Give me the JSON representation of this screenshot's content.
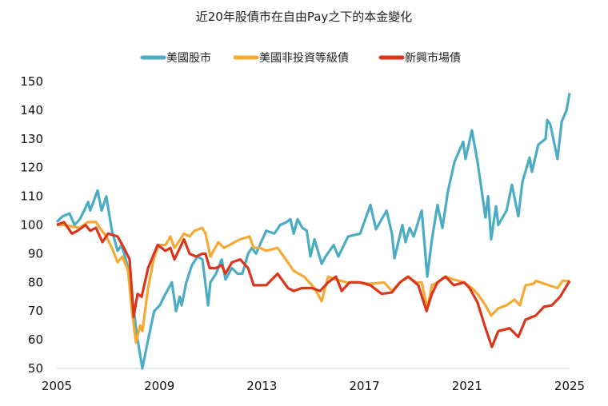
{
  "chart_data": {
    "type": "line",
    "title": "近20年股債市在自由Pay之下的本金變化",
    "xlabel": "",
    "ylabel": "",
    "xlim": [
      2005,
      2025
    ],
    "ylim": [
      50,
      150
    ],
    "x_ticks": [
      "2005",
      "2009",
      "2013",
      "2017",
      "2021",
      "2025"
    ],
    "y_ticks": [
      "50",
      "60",
      "70",
      "80",
      "90",
      "100",
      "110",
      "120",
      "130",
      "140",
      "150"
    ],
    "grid": false,
    "legend_position": "top",
    "series": [
      {
        "name": "美國股市",
        "color": "#4bacc6",
        "points": [
          [
            2005,
            101
          ],
          [
            2005.22,
            103
          ],
          [
            2005.5,
            104
          ],
          [
            2005.69,
            100
          ],
          [
            2005.9,
            102
          ],
          [
            2006.12,
            106
          ],
          [
            2006.22,
            108
          ],
          [
            2006.3,
            105
          ],
          [
            2006.59,
            112
          ],
          [
            2006.75,
            105
          ],
          [
            2006.93,
            110
          ],
          [
            2007.15,
            98
          ],
          [
            2007.37,
            91
          ],
          [
            2007.53,
            93
          ],
          [
            2007.78,
            85
          ],
          [
            2008.15,
            60
          ],
          [
            2008.34,
            50
          ],
          [
            2008.56,
            60
          ],
          [
            2008.8,
            70
          ],
          [
            2009.02,
            72
          ],
          [
            2009.24,
            76
          ],
          [
            2009.49,
            80
          ],
          [
            2009.65,
            70
          ],
          [
            2009.8,
            75
          ],
          [
            2009.87,
            72
          ],
          [
            2010.05,
            80
          ],
          [
            2010.27,
            86
          ],
          [
            2010.49,
            89
          ],
          [
            2010.68,
            88
          ],
          [
            2010.9,
            72
          ],
          [
            2010.99,
            80
          ],
          [
            2011.21,
            83
          ],
          [
            2011.43,
            88
          ],
          [
            2011.58,
            81
          ],
          [
            2011.83,
            85
          ],
          [
            2012.05,
            83
          ],
          [
            2012.24,
            83
          ],
          [
            2012.46,
            90
          ],
          [
            2012.61,
            92
          ],
          [
            2012.77,
            90
          ],
          [
            2013.02,
            95
          ],
          [
            2013.17,
            98
          ],
          [
            2013.49,
            97
          ],
          [
            2013.71,
            100
          ],
          [
            2013.96,
            101
          ],
          [
            2014.11,
            102
          ],
          [
            2014.24,
            97
          ],
          [
            2014.39,
            102
          ],
          [
            2014.58,
            99
          ],
          [
            2014.75,
            98
          ],
          [
            2014.89,
            89
          ],
          [
            2015.05,
            95
          ],
          [
            2015.33,
            86.5
          ],
          [
            2015.48,
            89
          ],
          [
            2015.8,
            93
          ],
          [
            2015.98,
            89
          ],
          [
            2016.36,
            96
          ],
          [
            2016.83,
            97
          ],
          [
            2017.23,
            107
          ],
          [
            2017.45,
            98.5
          ],
          [
            2017.86,
            105
          ],
          [
            2018.07,
            97
          ],
          [
            2018.17,
            88.4
          ],
          [
            2018.48,
            100
          ],
          [
            2018.6,
            94
          ],
          [
            2018.76,
            99
          ],
          [
            2018.92,
            96
          ],
          [
            2019.23,
            105
          ],
          [
            2019.45,
            82
          ],
          [
            2019.63,
            95
          ],
          [
            2019.85,
            107
          ],
          [
            2020.04,
            99
          ],
          [
            2020.26,
            112
          ],
          [
            2020.51,
            122
          ],
          [
            2020.85,
            129
          ],
          [
            2020.94,
            123
          ],
          [
            2021.19,
            133
          ],
          [
            2021.41,
            122
          ],
          [
            2021.57,
            112
          ],
          [
            2021.72,
            102.6
          ],
          [
            2021.82,
            110
          ],
          [
            2021.94,
            95
          ],
          [
            2022.13,
            106.5
          ],
          [
            2022.22,
            100
          ],
          [
            2022.54,
            105
          ],
          [
            2022.75,
            114
          ],
          [
            2023.0,
            103
          ],
          [
            2023.16,
            115
          ],
          [
            2023.44,
            123.5
          ],
          [
            2023.53,
            118.5
          ],
          [
            2023.78,
            128
          ],
          [
            2024.06,
            130
          ],
          [
            2024.13,
            136.6
          ],
          [
            2024.25,
            135
          ],
          [
            2024.53,
            123
          ],
          [
            2024.69,
            136
          ],
          [
            2024.88,
            140
          ],
          [
            2025,
            146
          ]
        ]
      },
      {
        "name": "美國非投資等級債",
        "color": "#f7a935",
        "points": [
          [
            2005,
            100
          ],
          [
            2005.28,
            100
          ],
          [
            2005.9,
            99
          ],
          [
            2006.2,
            101
          ],
          [
            2006.53,
            101
          ],
          [
            2006.68,
            99
          ],
          [
            2006.93,
            96
          ],
          [
            2007.15,
            92
          ],
          [
            2007.37,
            87
          ],
          [
            2007.56,
            89
          ],
          [
            2007.78,
            84
          ],
          [
            2007.93,
            70
          ],
          [
            2008.09,
            59
          ],
          [
            2008.25,
            65
          ],
          [
            2008.34,
            63
          ],
          [
            2008.56,
            78
          ],
          [
            2008.78,
            88
          ],
          [
            2008.96,
            93
          ],
          [
            2009.24,
            93
          ],
          [
            2009.43,
            96
          ],
          [
            2009.59,
            92
          ],
          [
            2009.96,
            97
          ],
          [
            2010.18,
            96
          ],
          [
            2010.37,
            98
          ],
          [
            2010.68,
            99
          ],
          [
            2010.8,
            97
          ],
          [
            2010.99,
            89
          ],
          [
            2011.11,
            91
          ],
          [
            2011.3,
            94
          ],
          [
            2011.52,
            92
          ],
          [
            2011.74,
            93
          ],
          [
            2011.93,
            94
          ],
          [
            2012.15,
            95
          ],
          [
            2012.52,
            96
          ],
          [
            2012.68,
            92
          ],
          [
            2012.93,
            92
          ],
          [
            2013.17,
            91
          ],
          [
            2013.61,
            92
          ],
          [
            2013.93,
            88
          ],
          [
            2014.24,
            84
          ],
          [
            2014.64,
            82
          ],
          [
            2015.05,
            78
          ],
          [
            2015.33,
            73.4
          ],
          [
            2015.58,
            82
          ],
          [
            2015.89,
            81
          ],
          [
            2016.3,
            80
          ],
          [
            2016.73,
            80
          ],
          [
            2017.23,
            79.5
          ],
          [
            2017.76,
            80
          ],
          [
            2018.07,
            77
          ],
          [
            2018.39,
            80
          ],
          [
            2018.7,
            82
          ],
          [
            2019.01,
            80
          ],
          [
            2019.23,
            80
          ],
          [
            2019.45,
            71
          ],
          [
            2019.63,
            79
          ],
          [
            2019.85,
            80
          ],
          [
            2020.16,
            82
          ],
          [
            2020.48,
            81
          ],
          [
            2020.88,
            80
          ],
          [
            2021.19,
            78
          ],
          [
            2021.41,
            76
          ],
          [
            2021.72,
            72
          ],
          [
            2021.94,
            68.4
          ],
          [
            2022.22,
            71
          ],
          [
            2022.54,
            72
          ],
          [
            2022.85,
            74
          ],
          [
            2023.06,
            72
          ],
          [
            2023.28,
            79
          ],
          [
            2023.59,
            79.5
          ],
          [
            2023.69,
            80.5
          ],
          [
            2024.53,
            78
          ],
          [
            2024.72,
            80.5
          ],
          [
            2025,
            80.5
          ]
        ]
      },
      {
        "name": "新興市場債",
        "color": "#d9361c",
        "points": [
          [
            2005,
            100
          ],
          [
            2005.28,
            101
          ],
          [
            2005.59,
            97
          ],
          [
            2005.81,
            98
          ],
          [
            2006.12,
            100
          ],
          [
            2006.3,
            98
          ],
          [
            2006.53,
            99
          ],
          [
            2006.78,
            94
          ],
          [
            2007.0,
            97
          ],
          [
            2007.37,
            96
          ],
          [
            2007.62,
            92
          ],
          [
            2007.84,
            88
          ],
          [
            2008.0,
            68
          ],
          [
            2008.15,
            76
          ],
          [
            2008.31,
            75
          ],
          [
            2008.56,
            85
          ],
          [
            2008.93,
            93
          ],
          [
            2009.24,
            91
          ],
          [
            2009.43,
            92
          ],
          [
            2009.59,
            88
          ],
          [
            2009.96,
            95
          ],
          [
            2010.18,
            90
          ],
          [
            2010.43,
            89
          ],
          [
            2010.68,
            90
          ],
          [
            2010.8,
            90
          ],
          [
            2010.96,
            85
          ],
          [
            2011.21,
            85
          ],
          [
            2011.43,
            86
          ],
          [
            2011.58,
            83
          ],
          [
            2011.83,
            87
          ],
          [
            2012.15,
            88
          ],
          [
            2012.46,
            85
          ],
          [
            2012.68,
            79
          ],
          [
            2012.93,
            79
          ],
          [
            2013.17,
            79
          ],
          [
            2013.61,
            83
          ],
          [
            2014.02,
            78
          ],
          [
            2014.24,
            77
          ],
          [
            2014.55,
            78
          ],
          [
            2014.95,
            78
          ],
          [
            2015.27,
            77
          ],
          [
            2015.58,
            80
          ],
          [
            2015.89,
            82
          ],
          [
            2016.11,
            77
          ],
          [
            2016.42,
            80
          ],
          [
            2016.83,
            80
          ],
          [
            2017.23,
            79
          ],
          [
            2017.67,
            76
          ],
          [
            2018.07,
            76.5
          ],
          [
            2018.39,
            80
          ],
          [
            2018.7,
            82
          ],
          [
            2019.1,
            79
          ],
          [
            2019.42,
            70
          ],
          [
            2019.63,
            76
          ],
          [
            2019.85,
            80
          ],
          [
            2020.16,
            82
          ],
          [
            2020.48,
            79
          ],
          [
            2020.88,
            80
          ],
          [
            2021.1,
            78
          ],
          [
            2021.41,
            73
          ],
          [
            2021.72,
            64
          ],
          [
            2021.97,
            57.5
          ],
          [
            2022.22,
            63
          ],
          [
            2022.66,
            64
          ],
          [
            2023.0,
            61
          ],
          [
            2023.28,
            67
          ],
          [
            2023.69,
            68.5
          ],
          [
            2024.0,
            71.5
          ],
          [
            2024.31,
            72
          ],
          [
            2024.63,
            75
          ],
          [
            2025,
            80.5
          ]
        ]
      }
    ]
  }
}
